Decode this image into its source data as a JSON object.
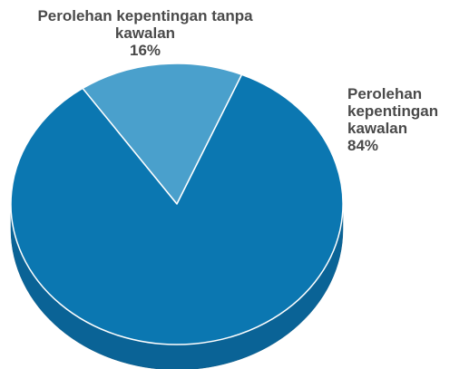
{
  "chart_data": {
    "type": "pie",
    "categories": [
      "Perolehan kepentingan tanpa kawalan",
      "Perolehan kepentingan kawalan"
    ],
    "values": [
      16,
      84
    ],
    "value_labels": [
      "16%",
      "84%"
    ],
    "colors": [
      "#4aa0cc",
      "#0b77b1"
    ],
    "side_color": "#0a6396"
  }
}
